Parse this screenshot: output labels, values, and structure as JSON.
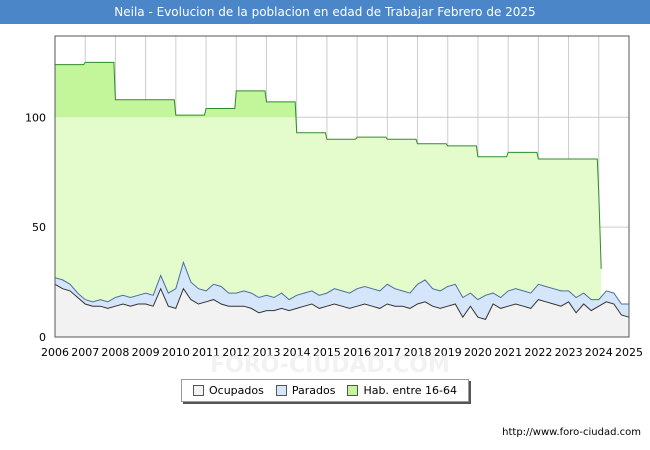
{
  "chart_data": {
    "type": "area",
    "title": "Neila - Evolucion de la poblacion en edad de Trabajar Febrero de 2025",
    "xlabel": "",
    "ylabel": "",
    "xlim": [
      2006,
      2025
    ],
    "ylim": [
      0,
      137
    ],
    "yticks": [
      0,
      50,
      100
    ],
    "xticks": [
      2006,
      2007,
      2008,
      2009,
      2010,
      2011,
      2012,
      2013,
      2014,
      2015,
      2016,
      2017,
      2018,
      2019,
      2020,
      2021,
      2022,
      2023,
      2024,
      2025
    ],
    "legend": [
      "Ocupados",
      "Parados",
      "Hab. entre 16-64"
    ],
    "colors": {
      "hab_fill": "#e4fccb",
      "hab_fill_over100": "#c3f59a",
      "hab_line": "#2e8b2e",
      "parados_fill": "#d6e6fa",
      "parados_line": "#4a6fa0",
      "ocupados_fill": "#f2f2f2",
      "ocupados_line": "#333333",
      "title_bg": "#4a86c8"
    },
    "hab": {
      "x": [
        2006.0,
        2006.95,
        2007.0,
        2007.95,
        2008.0,
        2008.95,
        2009.0,
        2009.95,
        2010.0,
        2010.95,
        2011.0,
        2011.95,
        2012.0,
        2012.95,
        2013.0,
        2013.95,
        2014.0,
        2014.95,
        2015.0,
        2015.95,
        2016.0,
        2016.95,
        2017.0,
        2017.95,
        2018.0,
        2018.95,
        2019.0,
        2019.95,
        2020.0,
        2020.95,
        2021.0,
        2021.95,
        2022.0,
        2022.95,
        2023.0,
        2023.95,
        2024.0,
        2024.08
      ],
      "y": [
        124,
        124,
        125,
        125,
        108,
        108,
        108,
        108,
        101,
        101,
        104,
        104,
        112,
        112,
        107,
        107,
        93,
        93,
        90,
        90,
        91,
        91,
        90,
        90,
        88,
        88,
        87,
        87,
        82,
        82,
        84,
        84,
        81,
        81,
        81,
        81,
        65,
        31
      ]
    },
    "parados": {
      "x": [
        2006.0,
        2006.25,
        2006.5,
        2006.75,
        2007.0,
        2007.25,
        2007.5,
        2007.75,
        2008.0,
        2008.25,
        2008.5,
        2008.75,
        2009.0,
        2009.25,
        2009.5,
        2009.75,
        2010.0,
        2010.25,
        2010.5,
        2010.75,
        2011.0,
        2011.25,
        2011.5,
        2011.75,
        2012.0,
        2012.25,
        2012.5,
        2012.75,
        2013.0,
        2013.25,
        2013.5,
        2013.75,
        2014.0,
        2014.25,
        2014.5,
        2014.75,
        2015.0,
        2015.25,
        2015.5,
        2015.75,
        2016.0,
        2016.25,
        2016.5,
        2016.75,
        2017.0,
        2017.25,
        2017.5,
        2017.75,
        2018.0,
        2018.25,
        2018.5,
        2018.75,
        2019.0,
        2019.25,
        2019.5,
        2019.75,
        2020.0,
        2020.25,
        2020.5,
        2020.75,
        2021.0,
        2021.25,
        2021.5,
        2021.75,
        2022.0,
        2022.25,
        2022.5,
        2022.75,
        2023.0,
        2023.25,
        2023.5,
        2023.75,
        2024.0,
        2024.25,
        2024.5,
        2024.75,
        2025.0
      ],
      "y": [
        27,
        26,
        24,
        20,
        17,
        16,
        17,
        16,
        18,
        19,
        18,
        19,
        20,
        19,
        28,
        20,
        22,
        34,
        25,
        22,
        21,
        24,
        23,
        20,
        20,
        21,
        20,
        18,
        19,
        18,
        20,
        17,
        19,
        20,
        21,
        19,
        20,
        22,
        21,
        20,
        22,
        23,
        22,
        21,
        24,
        22,
        21,
        20,
        24,
        26,
        22,
        21,
        23,
        24,
        18,
        20,
        17,
        19,
        20,
        18,
        21,
        22,
        21,
        20,
        24,
        23,
        22,
        21,
        21,
        18,
        20,
        17,
        17,
        21,
        20,
        15,
        15
      ]
    },
    "ocupados": {
      "x": [
        2006.0,
        2006.25,
        2006.5,
        2006.75,
        2007.0,
        2007.25,
        2007.5,
        2007.75,
        2008.0,
        2008.25,
        2008.5,
        2008.75,
        2009.0,
        2009.25,
        2009.5,
        2009.75,
        2010.0,
        2010.25,
        2010.5,
        2010.75,
        2011.0,
        2011.25,
        2011.5,
        2011.75,
        2012.0,
        2012.25,
        2012.5,
        2012.75,
        2013.0,
        2013.25,
        2013.5,
        2013.75,
        2014.0,
        2014.25,
        2014.5,
        2014.75,
        2015.0,
        2015.25,
        2015.5,
        2015.75,
        2016.0,
        2016.25,
        2016.5,
        2016.75,
        2017.0,
        2017.25,
        2017.5,
        2017.75,
        2018.0,
        2018.25,
        2018.5,
        2018.75,
        2019.0,
        2019.25,
        2019.5,
        2019.75,
        2020.0,
        2020.25,
        2020.5,
        2020.75,
        2021.0,
        2021.25,
        2021.5,
        2021.75,
        2022.0,
        2022.25,
        2022.5,
        2022.75,
        2023.0,
        2023.25,
        2023.5,
        2023.75,
        2024.0,
        2024.25,
        2024.5,
        2024.75,
        2025.0
      ],
      "y": [
        24,
        22,
        21,
        18,
        15,
        14,
        14,
        13,
        14,
        15,
        14,
        15,
        15,
        14,
        22,
        14,
        13,
        22,
        17,
        15,
        16,
        17,
        15,
        14,
        14,
        14,
        13,
        11,
        12,
        12,
        13,
        12,
        13,
        14,
        15,
        13,
        14,
        15,
        14,
        13,
        14,
        15,
        14,
        13,
        15,
        14,
        14,
        13,
        15,
        16,
        14,
        13,
        14,
        15,
        9,
        14,
        9,
        8,
        15,
        13,
        14,
        15,
        14,
        13,
        17,
        16,
        15,
        14,
        16,
        11,
        15,
        12,
        14,
        16,
        15,
        10,
        9
      ]
    }
  },
  "legend": {
    "ocupados": "Ocupados",
    "parados": "Parados",
    "hab": "Hab. entre 16-64"
  },
  "footer": {
    "url": "http://www.foro-ciudad.com"
  },
  "watermark": "FORO-CIUDAD.COM"
}
